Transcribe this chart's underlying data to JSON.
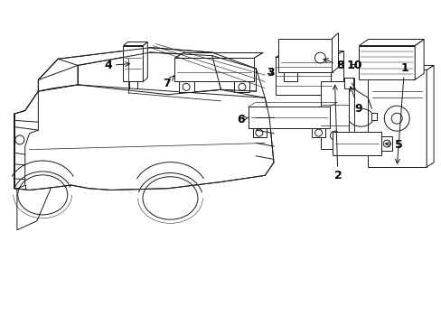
{
  "background_color": "#ffffff",
  "line_color": "#1a1a1a",
  "text_color": "#000000",
  "figure_width": 4.89,
  "figure_height": 3.6,
  "dpi": 100,
  "font_size": 9,
  "lw": 0.7
}
